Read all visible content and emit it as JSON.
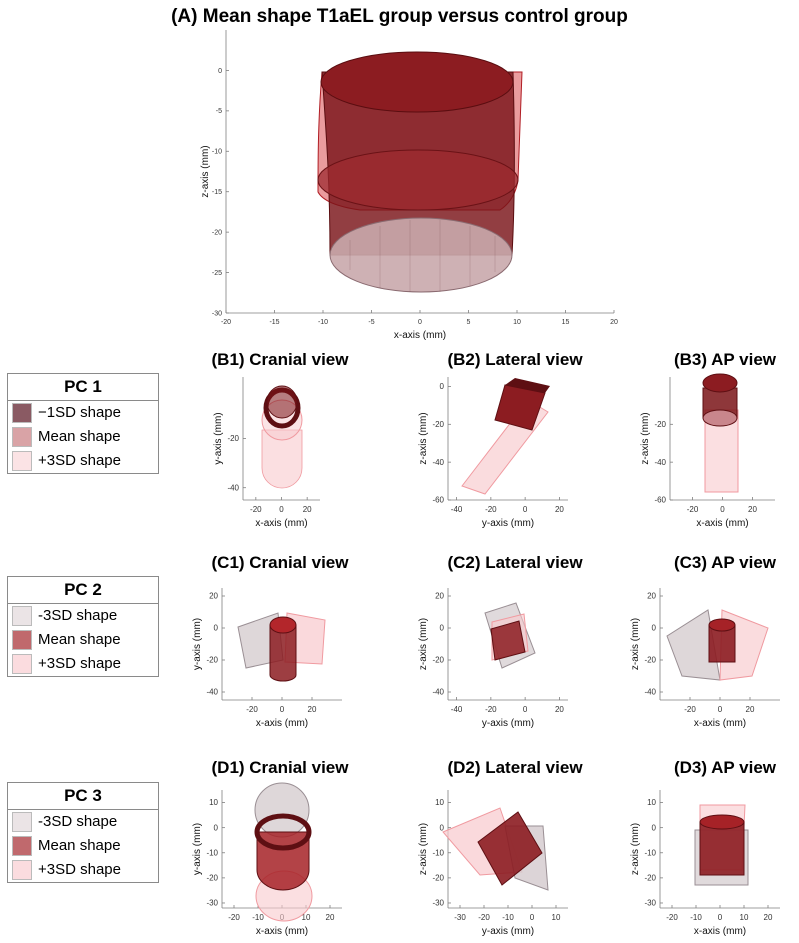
{
  "chart_data": [
    {
      "id": "A",
      "type": "3d-shape",
      "title": "(A) Mean shape T1aEL group versus control group",
      "xlabel": "x-axis (mm)",
      "ylabel": "z-axis (mm)",
      "xlim": [
        -20,
        20
      ],
      "ylim": [
        -30,
        5
      ],
      "xticks": [
        -20,
        -15,
        -10,
        -5,
        0,
        5,
        10,
        15,
        20
      ],
      "yticks": [
        0,
        -5,
        -10,
        -15,
        -20,
        -25,
        -30
      ],
      "grid": false
    },
    {
      "id": "B1",
      "type": "3d-shape",
      "title": "(B1) Cranial view",
      "xlabel": "x-axis (mm)",
      "ylabel": "y-axis (mm)",
      "xlim": [
        -30,
        30
      ],
      "ylim": [
        -45,
        5
      ],
      "xticks": [
        -20,
        0,
        20
      ],
      "yticks": [
        -20,
        -40
      ],
      "grid": false
    },
    {
      "id": "B2",
      "type": "3d-shape",
      "title": "(B2) Lateral view",
      "xlabel": "y-axis (mm)",
      "ylabel": "z-axis (mm)",
      "xlim": [
        -45,
        25
      ],
      "ylim": [
        -60,
        5
      ],
      "xticks": [
        -40,
        -20,
        0,
        20
      ],
      "yticks": [
        0,
        -20,
        -40,
        -60
      ],
      "grid": false
    },
    {
      "id": "B3",
      "type": "3d-shape",
      "title": "(B3) AP view",
      "xlabel": "x-axis (mm)",
      "ylabel": "z-axis (mm)",
      "xlim": [
        -35,
        35
      ],
      "ylim": [
        -60,
        5
      ],
      "xticks": [
        -20,
        0,
        20
      ],
      "yticks": [
        -20,
        -40,
        -60
      ],
      "grid": false
    },
    {
      "id": "C1",
      "type": "3d-shape",
      "title": "(C1) Cranial view",
      "xlabel": "x-axis (mm)",
      "ylabel": "y-axis (mm)",
      "xlim": [
        -40,
        40
      ],
      "ylim": [
        -45,
        25
      ],
      "xticks": [
        -20,
        0,
        20
      ],
      "yticks": [
        20,
        0,
        -20,
        -40
      ],
      "grid": false
    },
    {
      "id": "C2",
      "type": "3d-shape",
      "title": "(C2) Lateral view",
      "xlabel": "y-axis (mm)",
      "ylabel": "z-axis (mm)",
      "xlim": [
        -45,
        25
      ],
      "ylim": [
        -45,
        25
      ],
      "xticks": [
        -40,
        -20,
        0,
        20
      ],
      "yticks": [
        20,
        0,
        -20,
        -40
      ],
      "grid": false
    },
    {
      "id": "C3",
      "type": "3d-shape",
      "title": "(C3) AP view",
      "xlabel": "x-axis (mm)",
      "ylabel": "z-axis (mm)",
      "xlim": [
        -40,
        40
      ],
      "ylim": [
        -45,
        25
      ],
      "xticks": [
        -20,
        0,
        20
      ],
      "yticks": [
        20,
        0,
        -20,
        -40
      ],
      "grid": false
    },
    {
      "id": "D1",
      "type": "3d-shape",
      "title": "(D1) Cranial view",
      "xlabel": "x-axis (mm)",
      "ylabel": "y-axis (mm)",
      "xlim": [
        -25,
        25
      ],
      "ylim": [
        -32,
        15
      ],
      "xticks": [
        -20,
        -10,
        0,
        10,
        20
      ],
      "yticks": [
        10,
        0,
        -10,
        -20,
        -30
      ],
      "grid": false
    },
    {
      "id": "D2",
      "type": "3d-shape",
      "title": "(D2) Lateral view",
      "xlabel": "y-axis (mm)",
      "ylabel": "z-axis (mm)",
      "xlim": [
        -35,
        15
      ],
      "ylim": [
        -32,
        15
      ],
      "xticks": [
        -30,
        -20,
        -10,
        0,
        10
      ],
      "yticks": [
        10,
        0,
        -10,
        -20,
        -30
      ],
      "grid": false
    },
    {
      "id": "D3",
      "type": "3d-shape",
      "title": "(D3) AP view",
      "xlabel": "x-axis (mm)",
      "ylabel": "z-axis (mm)",
      "xlim": [
        -25,
        25
      ],
      "ylim": [
        -32,
        15
      ],
      "xticks": [
        -20,
        -10,
        0,
        10,
        20
      ],
      "yticks": [
        10,
        0,
        -10,
        -20,
        -30
      ],
      "grid": false
    }
  ],
  "legends": [
    {
      "title": "PC 1",
      "items": [
        {
          "label": "−1SD shape",
          "color": "#8a5a63"
        },
        {
          "label": "Mean shape",
          "color": "#d9a3a6"
        },
        {
          "label": "+3SD shape",
          "color": "#fbe3e5"
        }
      ]
    },
    {
      "title": "PC 2",
      "items": [
        {
          "label": "-3SD shape",
          "color": "#ebe4e6"
        },
        {
          "label": "Mean shape",
          "color": "#c0696d"
        },
        {
          "label": "+3SD shape",
          "color": "#fbdcdf"
        }
      ]
    },
    {
      "title": "PC 3",
      "items": [
        {
          "label": "-3SD shape",
          "color": "#ebe4e6"
        },
        {
          "label": "Mean shape",
          "color": "#c0696d"
        },
        {
          "label": "+3SD shape",
          "color": "#fbdcdf"
        }
      ]
    }
  ],
  "colors": {
    "dark_red": "#7a1418",
    "mean_red": "#b3262b",
    "light_pink": "#f6b9bd",
    "grey_shape": "#c9c0c4",
    "axis": "#7f7f7f"
  }
}
